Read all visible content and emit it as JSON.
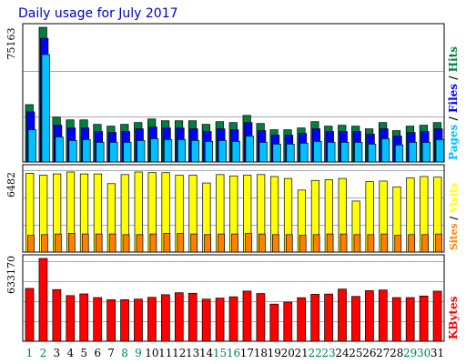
{
  "chart_data": {
    "type": "bar",
    "title": "Daily usage for July 2017",
    "categories": [
      "1",
      "2",
      "3",
      "4",
      "5",
      "6",
      "7",
      "8",
      "9",
      "10",
      "11",
      "12",
      "13",
      "14",
      "15",
      "16",
      "17",
      "18",
      "19",
      "20",
      "21",
      "22",
      "23",
      "24",
      "25",
      "26",
      "27",
      "28",
      "29",
      "30",
      "31"
    ],
    "weekend_days": [
      "1",
      "2",
      "8",
      "9",
      "15",
      "16",
      "22",
      "23",
      "29",
      "30"
    ],
    "panels": [
      {
        "id": "hits-files-pages",
        "max_label": "75163",
        "ylim": [
          0,
          75163
        ],
        "legend": [
          "Hits",
          "Files",
          "Pages"
        ],
        "series": [
          {
            "name": "Hits",
            "color": "#008040",
            "values": [
              32000,
              75163,
              25000,
              23500,
              23500,
              21000,
              20000,
              21000,
              22000,
              24000,
              23000,
              23000,
              23000,
              21000,
              22500,
              22000,
              26000,
              21500,
              18000,
              18000,
              19000,
              22500,
              20000,
              20500,
              20000,
              18500,
              22000,
              17500,
              20000,
              20500,
              22000
            ]
          },
          {
            "name": "Files",
            "color": "#0000ff",
            "values": [
              28000,
              69000,
              20500,
              19000,
              19000,
              17000,
              16500,
              17000,
              18500,
              19500,
              19000,
              19000,
              18500,
              17000,
              18500,
              18000,
              22000,
              17500,
              15000,
              15000,
              16000,
              18500,
              17000,
              17000,
              17000,
              15500,
              18500,
              14500,
              16500,
              17000,
              18500
            ]
          },
          {
            "name": "Pages",
            "color": "#00c0ff",
            "values": [
              18000,
              60000,
              14000,
              12000,
              12500,
              11000,
              11000,
              11000,
              12000,
              13000,
              12500,
              12500,
              12000,
              11500,
              12000,
              11500,
              14500,
              11000,
              10000,
              10000,
              10500,
              11500,
              11000,
              11000,
              11000,
              10000,
              13000,
              9500,
              11000,
              11000,
              12500
            ]
          }
        ]
      },
      {
        "id": "visits-sites",
        "max_label": "6482",
        "ylim": [
          0,
          6482
        ],
        "legend": [
          "Visits",
          "Sites"
        ],
        "series": [
          {
            "name": "Visits",
            "color": "#ffff00",
            "values": [
              6100,
              5950,
              6050,
              6200,
              6050,
              6050,
              5300,
              6000,
              6200,
              6150,
              6150,
              5950,
              5950,
              5350,
              6000,
              5900,
              5950,
              6000,
              5850,
              5700,
              4800,
              5550,
              5600,
              5700,
              3950,
              5450,
              5500,
              5050,
              5750,
              5850,
              5800
            ]
          },
          {
            "name": "Sites",
            "color": "#ff8000",
            "values": [
              1300,
              1350,
              1400,
              1450,
              1400,
              1400,
              1400,
              1350,
              1350,
              1400,
              1450,
              1450,
              1400,
              1350,
              1400,
              1400,
              1450,
              1400,
              1350,
              1350,
              1300,
              1350,
              1400,
              1400,
              1350,
              1350,
              1400,
              1300,
              1350,
              1350,
              1400
            ]
          }
        ]
      },
      {
        "id": "kbytes",
        "max_label": "633170",
        "ylim": [
          0,
          633170
        ],
        "legend": [
          "KBytes"
        ],
        "series": [
          {
            "name": "KBytes",
            "color": "#ff0000",
            "values": [
              404000,
              633170,
              395000,
              349000,
              362000,
              334000,
              318000,
              318000,
              322000,
              336000,
              356000,
              371000,
              367000,
              322000,
              330000,
              340000,
              384000,
              365000,
              284000,
              299000,
              333000,
              359000,
              361000,
              399000,
              343000,
              387000,
              392000,
              334000,
              334000,
              346000,
              383000
            ]
          }
        ]
      }
    ]
  }
}
